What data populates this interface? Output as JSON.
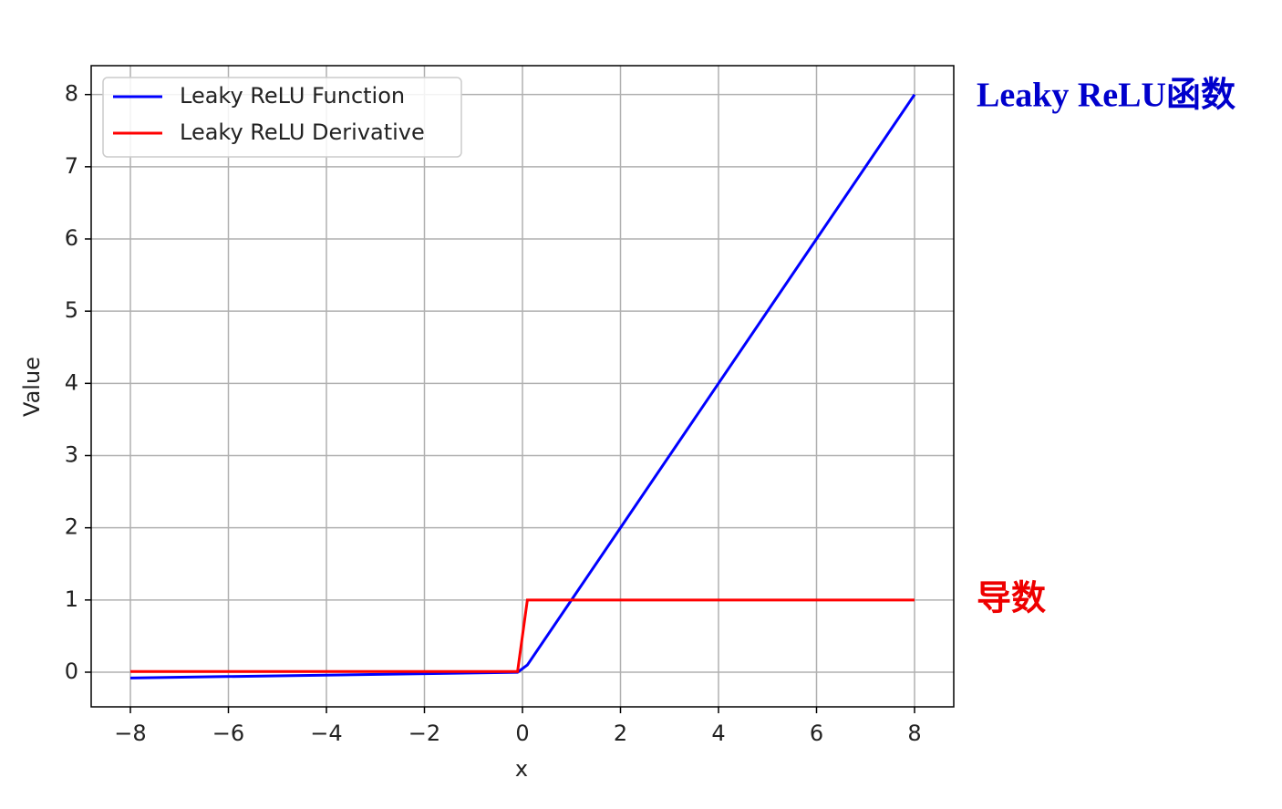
{
  "chart_data": {
    "type": "line",
    "x_label": "x",
    "y_label": "Value",
    "x": [
      -8,
      -0.1,
      0.1,
      8
    ],
    "series": [
      {
        "name": "Leaky ReLU Function",
        "color": "#0000ff",
        "values": [
          -0.08,
          -0.001,
          0.1,
          8
        ]
      },
      {
        "name": "Leaky ReLU Derivative",
        "color": "#ff0000",
        "values": [
          0.01,
          0.01,
          1,
          1
        ]
      }
    ],
    "xlim": [
      -8.8,
      8.8
    ],
    "ylim": [
      -0.48,
      8.4
    ],
    "xticks": [
      {
        "value": -8,
        "label": "−8"
      },
      {
        "value": -6,
        "label": "−6"
      },
      {
        "value": -4,
        "label": "−4"
      },
      {
        "value": -2,
        "label": "−2"
      },
      0,
      2,
      4,
      6,
      8
    ],
    "yticks": [
      0,
      1,
      2,
      3,
      4,
      5,
      6,
      7,
      8
    ],
    "grid": true,
    "legend": "upper-left",
    "annotations": [
      {
        "text": "Leaky ReLU函数",
        "color": "#0000cc"
      },
      {
        "text": "导数",
        "color": "#ee0000"
      }
    ]
  }
}
